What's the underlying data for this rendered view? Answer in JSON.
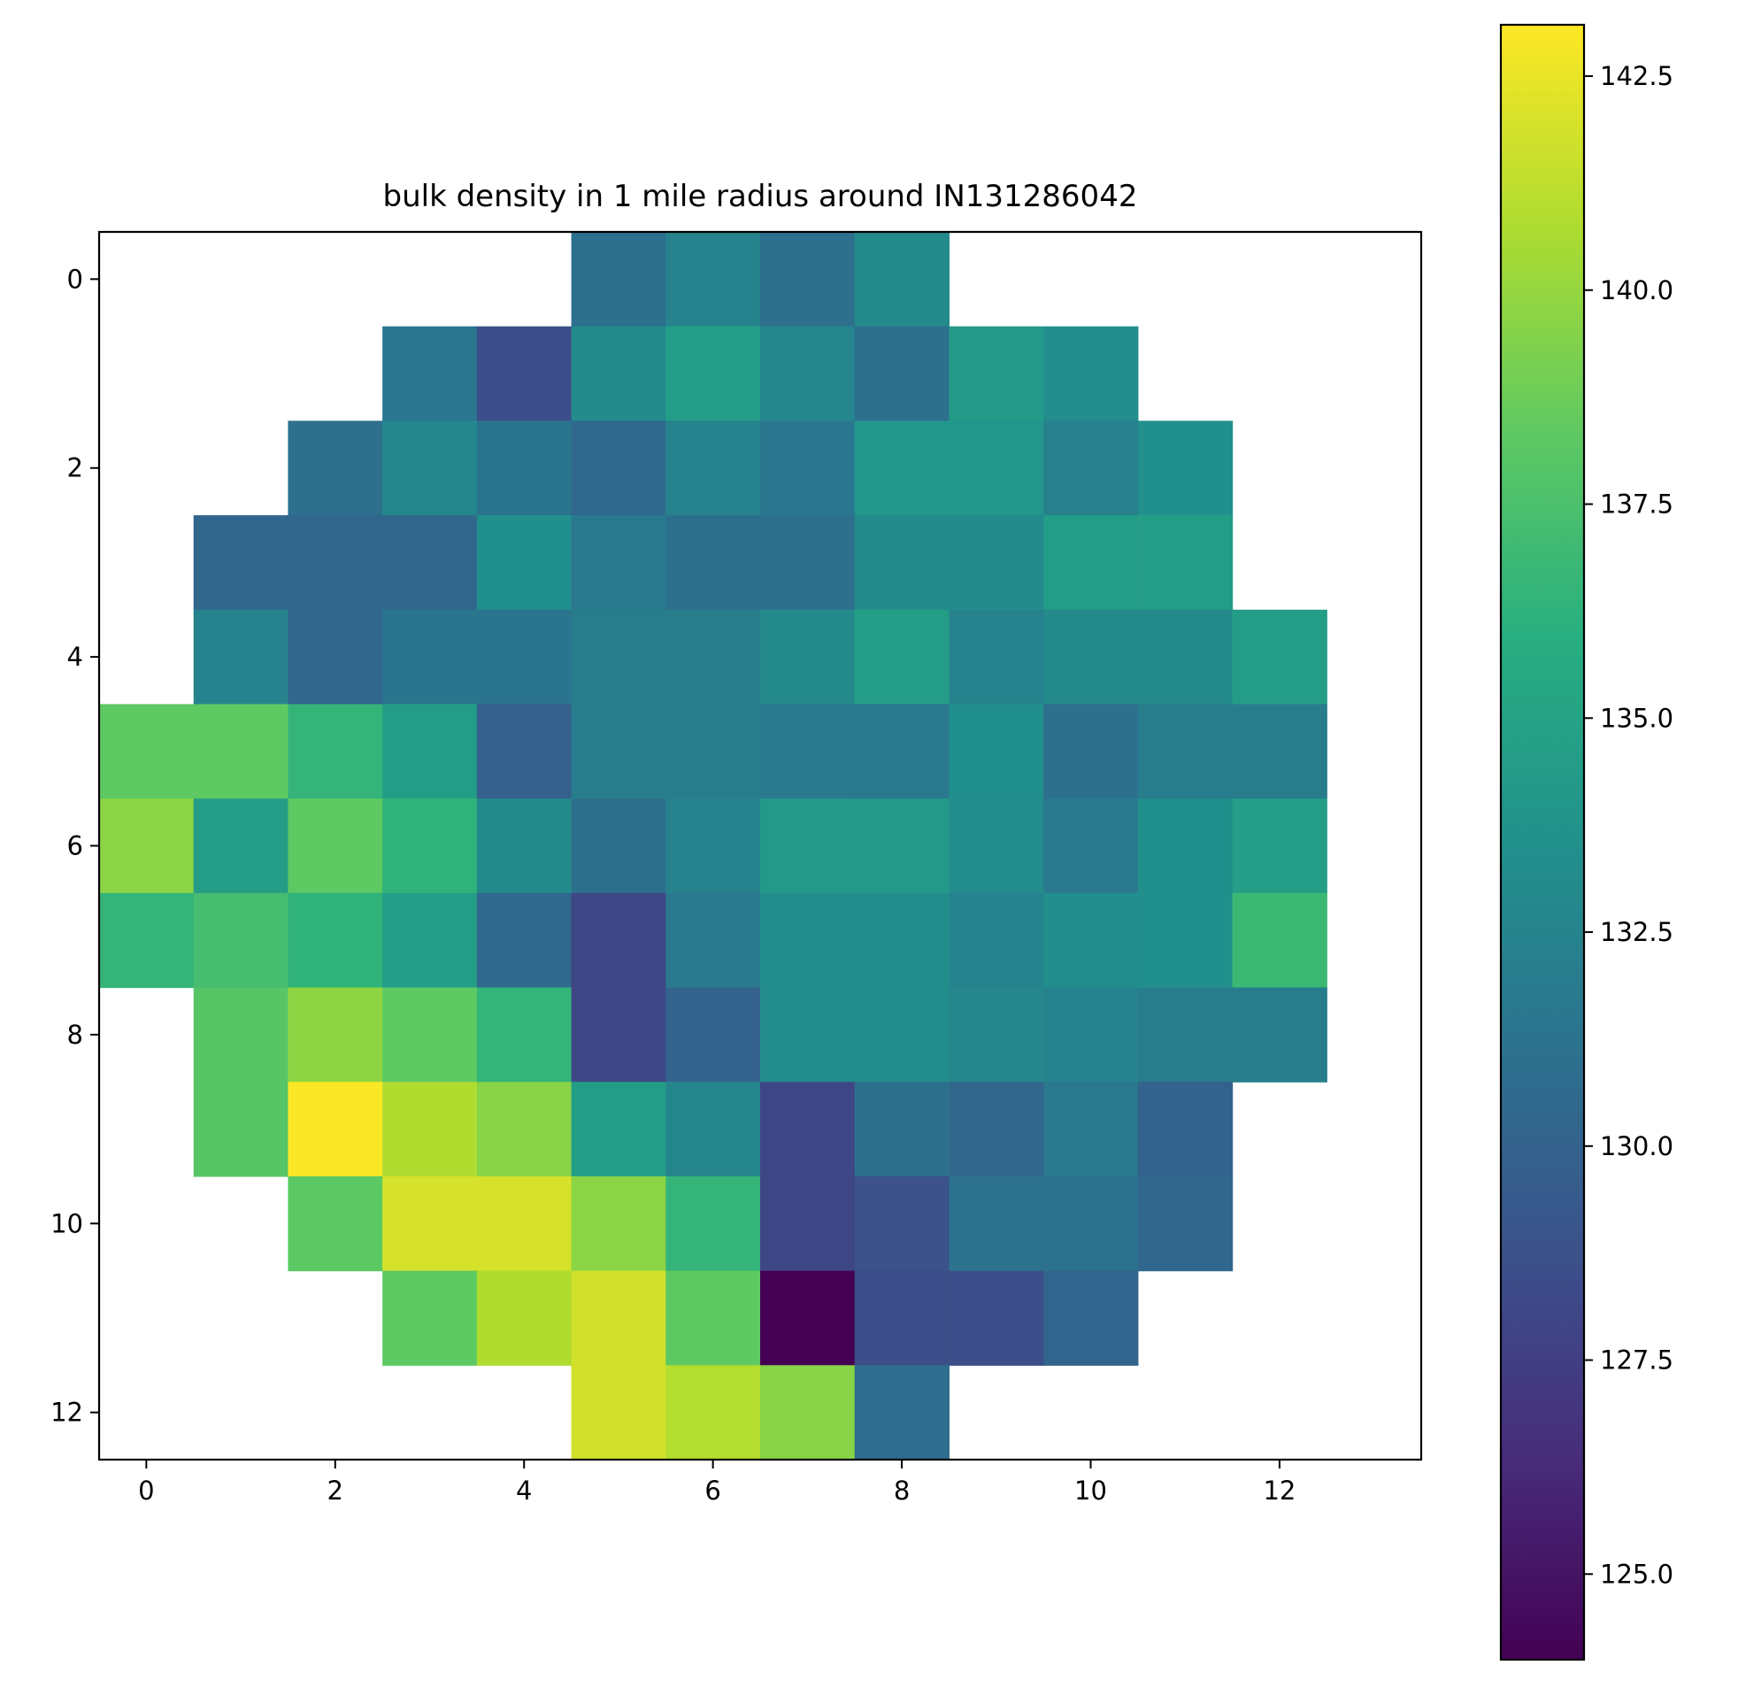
{
  "chart_data": {
    "type": "heatmap",
    "title": "bulk density in 1 mile radius around IN131286042",
    "xlabel": "",
    "ylabel": "",
    "x_ticks": [
      "0",
      "2",
      "4",
      "6",
      "8",
      "10",
      "12"
    ],
    "y_ticks": [
      "0",
      "2",
      "4",
      "6",
      "8",
      "10",
      "12"
    ],
    "xlim": [
      -0.5,
      13.5
    ],
    "ylim": [
      12.5,
      -0.5
    ],
    "colormap": "viridis",
    "colorbar": {
      "vmin": 124.0,
      "vmax": 143.1,
      "ticks": [
        "125.0",
        "127.5",
        "130.0",
        "132.5",
        "135.0",
        "137.5",
        "140.0",
        "142.5"
      ]
    },
    "grid": false,
    "rows": 13,
    "cols": 13,
    "values": [
      [
        null,
        null,
        null,
        null,
        null,
        131.0,
        132.5,
        131.0,
        133.0,
        null,
        null,
        null,
        null
      ],
      [
        null,
        null,
        null,
        131.5,
        128.5,
        133.0,
        134.5,
        132.7,
        131.0,
        134.3,
        133.2,
        null,
        null
      ],
      [
        null,
        null,
        131.0,
        132.7,
        131.3,
        130.5,
        132.5,
        131.5,
        134.0,
        134.0,
        132.3,
        133.5,
        null
      ],
      [
        null,
        130.3,
        130.3,
        130.3,
        133.5,
        131.7,
        131.0,
        131.0,
        133.0,
        133.0,
        134.5,
        134.5,
        null
      ],
      [
        null,
        132.5,
        130.3,
        131.3,
        131.3,
        132.0,
        132.0,
        133.0,
        134.5,
        132.5,
        133.0,
        133.0,
        134.5
      ],
      [
        138.3,
        138.3,
        136.5,
        134.5,
        129.8,
        132.0,
        132.0,
        131.7,
        131.6,
        133.5,
        131.0,
        132.0,
        132.0
      ],
      [
        139.7,
        134.5,
        138.3,
        136.3,
        133.0,
        131.0,
        132.5,
        134.2,
        134.2,
        133.2,
        131.7,
        133.5,
        134.6
      ],
      [
        136.5,
        137.3,
        136.3,
        134.5,
        130.5,
        128.0,
        131.7,
        133.3,
        133.3,
        132.5,
        133.3,
        133.5,
        136.8
      ],
      [
        null,
        138.0,
        139.8,
        138.3,
        136.5,
        128.0,
        130.0,
        133.2,
        133.2,
        132.7,
        132.4,
        132.0,
        132.0
      ],
      [
        null,
        138.0,
        143.0,
        140.8,
        139.6,
        134.5,
        132.6,
        128.0,
        131.0,
        130.3,
        131.6,
        130.0,
        null
      ],
      [
        null,
        null,
        138.2,
        141.9,
        141.9,
        139.7,
        136.5,
        128.0,
        128.8,
        131.2,
        131.2,
        130.3,
        null
      ],
      [
        null,
        null,
        null,
        138.3,
        140.8,
        141.8,
        138.3,
        124.0,
        128.5,
        128.5,
        130.2,
        null,
        null
      ],
      [
        null,
        null,
        null,
        null,
        null,
        141.8,
        140.9,
        139.6,
        130.7,
        null,
        null,
        null,
        null
      ]
    ]
  }
}
